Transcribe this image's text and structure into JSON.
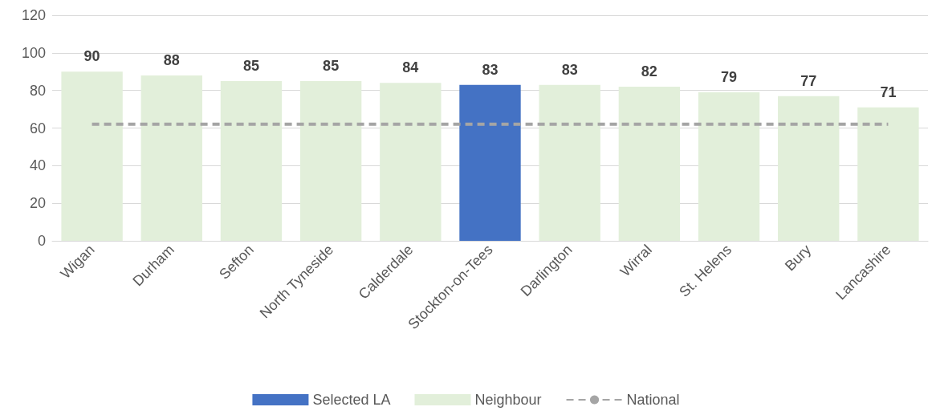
{
  "chart_data": {
    "type": "bar",
    "categories": [
      "Wigan",
      "Durham",
      "Sefton",
      "North Tyneside",
      "Calderdale",
      "Stockton-on-Tees",
      "Darlington",
      "Wirral",
      "St. Helens",
      "Bury",
      "Lancashire"
    ],
    "series": [
      {
        "name": "Selected LA",
        "color": "#4472c4",
        "values": [
          null,
          null,
          null,
          null,
          null,
          83,
          null,
          null,
          null,
          null,
          null
        ],
        "value_labels": [
          null,
          null,
          null,
          null,
          null,
          "83",
          null,
          null,
          null,
          null,
          null
        ]
      },
      {
        "name": "Neighbour",
        "color": "#e2efda",
        "values": [
          90,
          88,
          85,
          85,
          84,
          null,
          83,
          82,
          79,
          77,
          71
        ],
        "value_labels": [
          "90",
          "88",
          "85",
          "85",
          "84",
          null,
          "83",
          "82",
          "79",
          "77",
          "71"
        ]
      },
      {
        "name": "National",
        "type": "line",
        "color": "#a5a5a5",
        "line_style": "dashed",
        "values": [
          62,
          62,
          62,
          62,
          62,
          62,
          62,
          62,
          62,
          62,
          62
        ]
      }
    ],
    "stacked": true,
    "ylim": [
      0,
      120
    ],
    "yticks": [
      0,
      20,
      40,
      60,
      80,
      100,
      120
    ],
    "grid": "y",
    "legend": "bottom"
  }
}
